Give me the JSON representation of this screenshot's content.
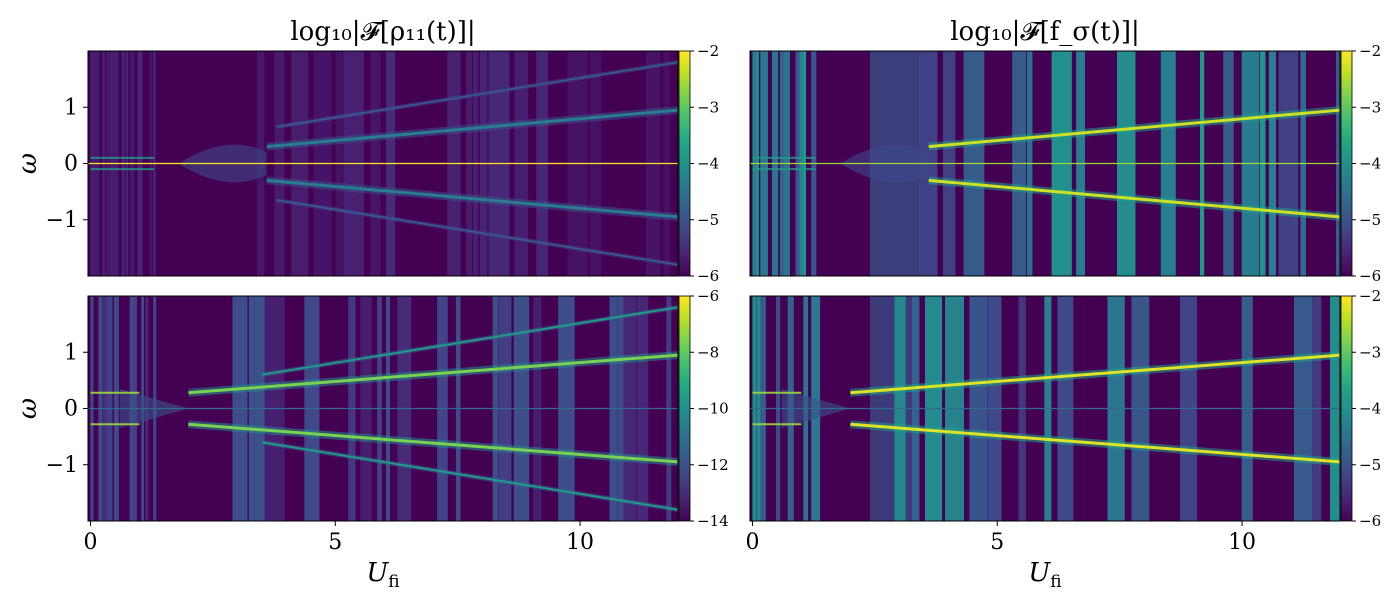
{
  "chart_data": [
    {
      "type": "heatmap",
      "title": "log₁₀|𝓕[ρ₁₁(t)]|",
      "xlabel": "",
      "ylabel": "ω",
      "xlim": [
        -0.05,
        12
      ],
      "ylim": [
        -2,
        2
      ],
      "x_ticks": [],
      "y_ticks": [
        "1",
        "0",
        "−1"
      ],
      "y_tick_values": [
        1,
        0,
        -1
      ],
      "colorbar": {
        "range": [
          -6,
          -2
        ],
        "ticks": [
          "−2",
          "−3",
          "−4",
          "−5",
          "−6"
        ],
        "tick_values": [
          -2,
          -3,
          -4,
          -5,
          -6
        ]
      },
      "colormap": "viridis",
      "background_level": 0.0,
      "features": {
        "dc_line": {
          "y": 0,
          "level": 1.0
        },
        "main_branches": {
          "start_x": 3.6,
          "start_omega": 0.3,
          "end_omega": 0.95,
          "level": 0.42
        },
        "outer_branches": {
          "start_x": 3.8,
          "start_omega": 0.65,
          "end_omega": 1.8,
          "level": 0.28
        },
        "stripe_intensity": 0.12
      }
    },
    {
      "type": "heatmap",
      "title": "log₁₀|𝓕[f_σ(t)]|",
      "xlabel": "",
      "ylabel": "",
      "xlim": [
        -0.05,
        12
      ],
      "ylim": [
        -2,
        2
      ],
      "x_ticks": [],
      "y_ticks": [],
      "colorbar": {
        "range": [
          -6,
          -2
        ],
        "ticks": [
          "−2",
          "−3",
          "−4",
          "−5",
          "−6"
        ],
        "tick_values": [
          -2,
          -3,
          -4,
          -5,
          -6
        ]
      },
      "colormap": "viridis",
      "background_level": 0.0,
      "features": {
        "dc_line": {
          "y": 0,
          "level": 0.85
        },
        "main_branches": {
          "start_x": 3.6,
          "start_omega": 0.3,
          "end_omega": 0.95,
          "level": 0.92
        },
        "outer_branches": null,
        "stripe_intensity": 0.55
      }
    },
    {
      "type": "heatmap",
      "title": "",
      "xlabel": "U_fi",
      "ylabel": "ω",
      "xlim": [
        -0.05,
        12
      ],
      "ylim": [
        -2,
        2
      ],
      "x_ticks": [
        "0",
        "5",
        "10"
      ],
      "x_tick_values": [
        0,
        5,
        10
      ],
      "y_ticks": [
        "1",
        "0",
        "−1"
      ],
      "y_tick_values": [
        1,
        0,
        -1
      ],
      "colorbar": {
        "range": [
          -14,
          -6
        ],
        "ticks": [
          "−6",
          "−8",
          "−10",
          "−12",
          "−14"
        ],
        "tick_values": [
          -6,
          -8,
          -10,
          -12,
          -14
        ]
      },
      "colormap": "viridis",
      "background_level": 0.0,
      "features": {
        "dc_line": {
          "y": 0,
          "level": 0.35
        },
        "main_branches": {
          "start_x": 2.0,
          "start_omega": 0.28,
          "end_omega": 0.95,
          "level": 0.8
        },
        "outer_branches": {
          "start_x": 3.5,
          "start_omega": 0.6,
          "end_omega": 1.8,
          "level": 0.55
        },
        "stripe_intensity": 0.25
      }
    },
    {
      "type": "heatmap",
      "title": "",
      "xlabel": "U_fi",
      "ylabel": "",
      "xlim": [
        -0.05,
        12
      ],
      "ylim": [
        -2,
        2
      ],
      "x_ticks": [
        "0",
        "5",
        "10"
      ],
      "x_tick_values": [
        0,
        5,
        10
      ],
      "y_ticks": [],
      "colorbar": {
        "range": [
          -6,
          -2
        ],
        "ticks": [
          "−2",
          "−3",
          "−4",
          "−5",
          "−6"
        ],
        "tick_values": [
          -2,
          -3,
          -4,
          -5,
          -6
        ]
      },
      "colormap": "viridis",
      "background_level": 0.0,
      "features": {
        "dc_line": {
          "y": 0,
          "level": 0.35
        },
        "main_branches": {
          "start_x": 2.0,
          "start_omega": 0.28,
          "end_omega": 0.95,
          "level": 0.95
        },
        "outer_branches": null,
        "stripe_intensity": 0.5
      }
    }
  ]
}
